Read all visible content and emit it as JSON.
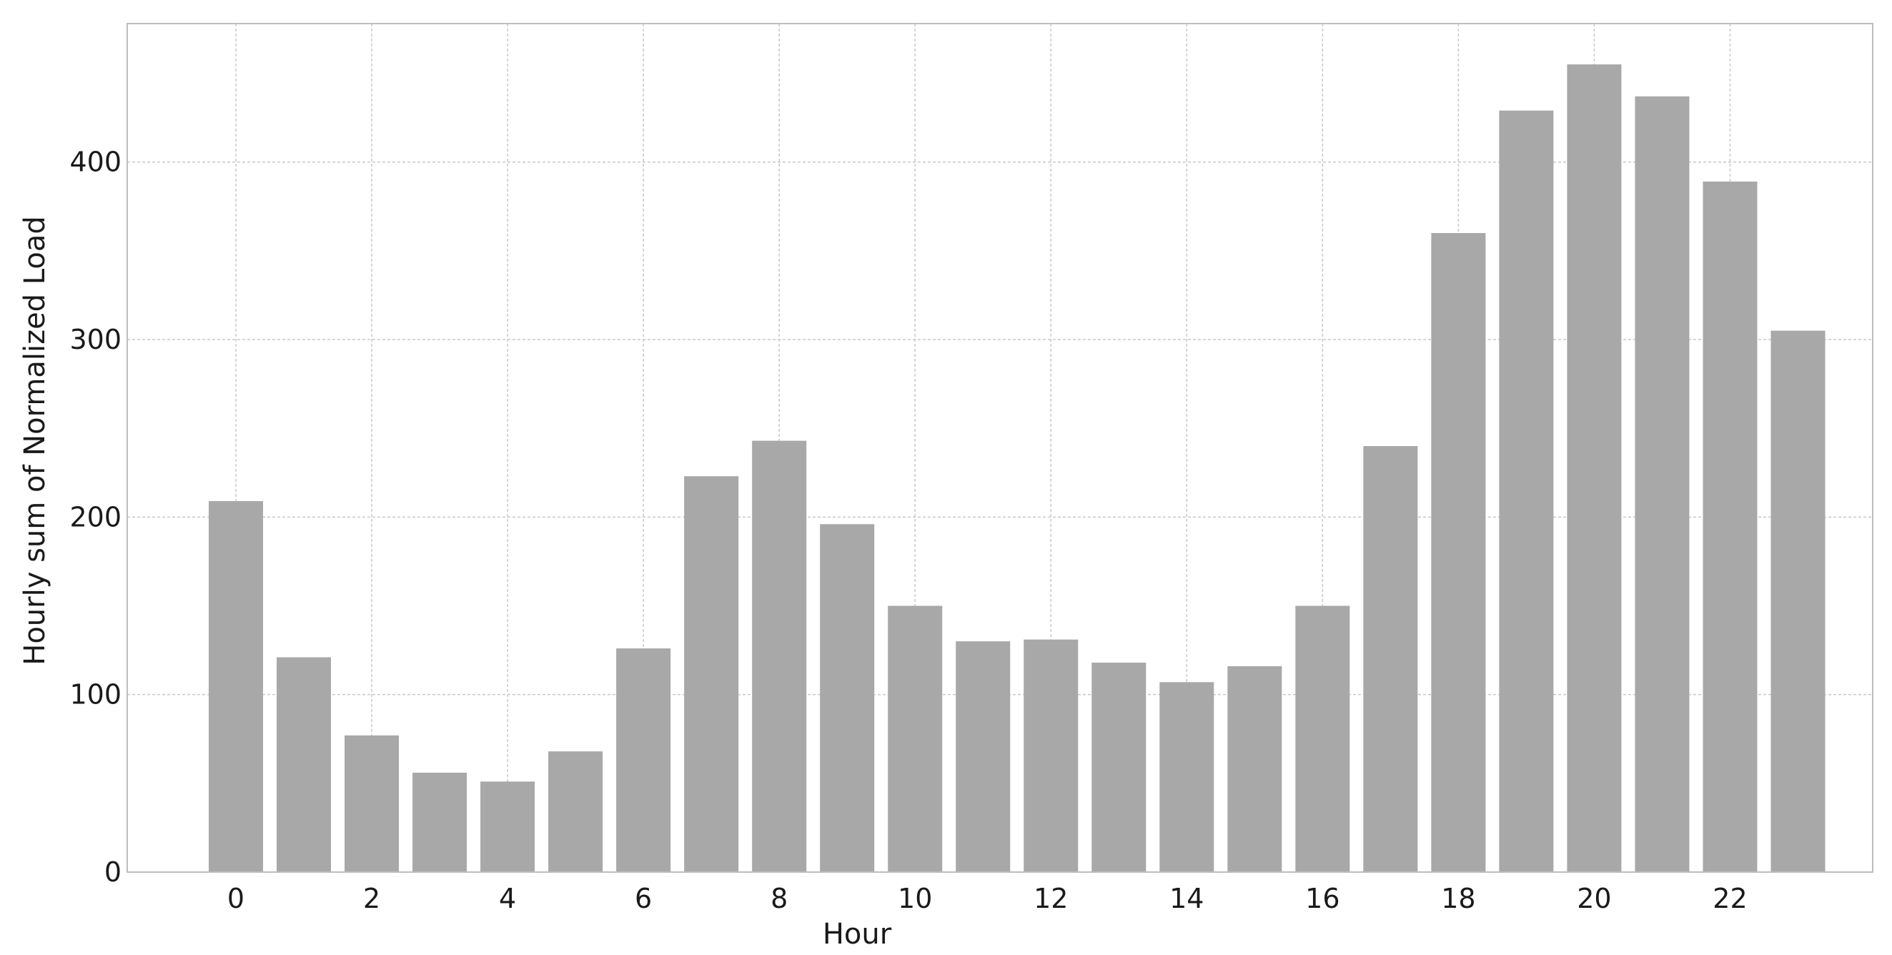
{
  "chart_data": {
    "type": "bar",
    "categories": [
      0,
      1,
      2,
      3,
      4,
      5,
      6,
      7,
      8,
      9,
      10,
      11,
      12,
      13,
      14,
      15,
      16,
      17,
      18,
      19,
      20,
      21,
      22,
      23
    ],
    "values": [
      209,
      121,
      77,
      56,
      51,
      68,
      126,
      223,
      243,
      196,
      150,
      130,
      131,
      118,
      107,
      116,
      150,
      240,
      360,
      429,
      455,
      437,
      389,
      305
    ],
    "xlabel": "Hour",
    "ylabel": "Hourly sum of Normalized Load",
    "xticks": [
      0,
      2,
      4,
      6,
      8,
      10,
      12,
      14,
      16,
      18,
      20,
      22
    ],
    "yticks": [
      0,
      100,
      200,
      300,
      400
    ],
    "xlim": [
      -1.6,
      24.1
    ],
    "ylim": [
      0,
      478
    ],
    "grid": true,
    "bar_color": "#a8a8a8"
  }
}
